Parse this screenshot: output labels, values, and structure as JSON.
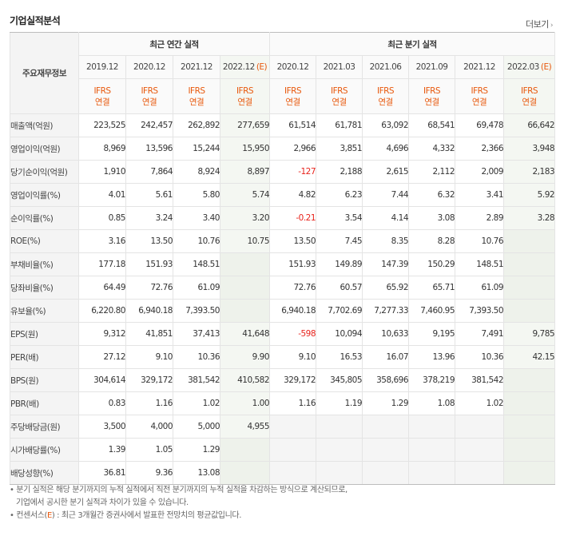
{
  "section_title": "기업실적분석",
  "more_link": "더보기",
  "table": {
    "corner_label": "주요재무정보",
    "annual_group": "최근 연간 실적",
    "quarterly_group": "최근 분기 실적",
    "periods": [
      "2019.12",
      "2020.12",
      "2021.12",
      "2022.12",
      "2020.12",
      "2021.03",
      "2021.06",
      "2021.09",
      "2021.12",
      "2022.03"
    ],
    "estimate_suffix": "(E)",
    "ifrs_line1": "IFRS",
    "ifrs_line2": "연결",
    "rows": [
      {
        "label": "매출액(억원)",
        "values": [
          "223,525",
          "242,457",
          "262,892",
          "277,659",
          "61,514",
          "61,781",
          "63,092",
          "68,541",
          "69,478",
          "66,642"
        ]
      },
      {
        "label": "영업이익(억원)",
        "values": [
          "8,969",
          "13,596",
          "15,244",
          "15,950",
          "2,966",
          "3,851",
          "4,696",
          "4,332",
          "2,366",
          "3,948"
        ]
      },
      {
        "label": "당기순이익(억원)",
        "values": [
          "1,910",
          "7,864",
          "8,924",
          "8,897",
          "-127",
          "2,188",
          "2,615",
          "2,112",
          "2,009",
          "2,183"
        ]
      },
      {
        "label": "영업이익률(%)",
        "values": [
          "4.01",
          "5.61",
          "5.80",
          "5.74",
          "4.82",
          "6.23",
          "7.44",
          "6.32",
          "3.41",
          "5.92"
        ]
      },
      {
        "label": "순이익률(%)",
        "values": [
          "0.85",
          "3.24",
          "3.40",
          "3.20",
          "-0.21",
          "3.54",
          "4.14",
          "3.08",
          "2.89",
          "3.28"
        ]
      },
      {
        "label": "ROE(%)",
        "values": [
          "3.16",
          "13.50",
          "10.76",
          "10.75",
          "13.50",
          "7.45",
          "8.35",
          "8.28",
          "10.76",
          ""
        ]
      },
      {
        "label": "부채비율(%)",
        "values": [
          "177.18",
          "151.93",
          "148.51",
          "",
          "151.93",
          "149.89",
          "147.39",
          "150.29",
          "148.51",
          ""
        ]
      },
      {
        "label": "당좌비율(%)",
        "values": [
          "64.49",
          "72.76",
          "61.09",
          "",
          "72.76",
          "60.57",
          "65.92",
          "65.71",
          "61.09",
          ""
        ]
      },
      {
        "label": "유보율(%)",
        "values": [
          "6,220.80",
          "6,940.18",
          "7,393.50",
          "",
          "6,940.18",
          "7,702.69",
          "7,277.33",
          "7,460.95",
          "7,393.50",
          ""
        ]
      },
      {
        "label": "EPS(원)",
        "values": [
          "9,312",
          "41,851",
          "37,413",
          "41,648",
          "-598",
          "10,094",
          "10,633",
          "9,195",
          "7,491",
          "9,785"
        ]
      },
      {
        "label": "PER(배)",
        "values": [
          "27.12",
          "9.10",
          "10.36",
          "9.90",
          "9.10",
          "16.53",
          "16.07",
          "13.96",
          "10.36",
          "42.15"
        ]
      },
      {
        "label": "BPS(원)",
        "values": [
          "304,614",
          "329,172",
          "381,542",
          "410,582",
          "329,172",
          "345,805",
          "358,696",
          "378,219",
          "381,542",
          ""
        ]
      },
      {
        "label": "PBR(배)",
        "values": [
          "0.83",
          "1.16",
          "1.02",
          "1.00",
          "1.16",
          "1.19",
          "1.29",
          "1.08",
          "1.02",
          ""
        ]
      },
      {
        "label": "주당배당금(원)",
        "values": [
          "3,500",
          "4,000",
          "5,000",
          "4,955",
          "",
          "",
          "",
          "",
          "",
          ""
        ]
      },
      {
        "label": "시가배당률(%)",
        "values": [
          "1.39",
          "1.05",
          "1.29",
          "",
          "",
          "",
          "",
          "",
          "",
          ""
        ]
      },
      {
        "label": "배당성향(%)",
        "values": [
          "36.81",
          "9.36",
          "13.08",
          "",
          "",
          "",
          "",
          "",
          "",
          ""
        ]
      }
    ]
  },
  "notes": {
    "line1": "분기 실적은 해당 분기까지의 누적 실적에서 직전 분기까지의 누적 실적을 차감하는 방식으로 계산되므로,",
    "line2": "기업에서 공시한 분기 실적과 차이가 있을 수 있습니다.",
    "line3_prefix": "컨센서스(",
    "line3_mark": "E",
    "line3_suffix": ") : 최근 3개월간 증권사에서 발표한 전망치의 평균값입니다."
  }
}
